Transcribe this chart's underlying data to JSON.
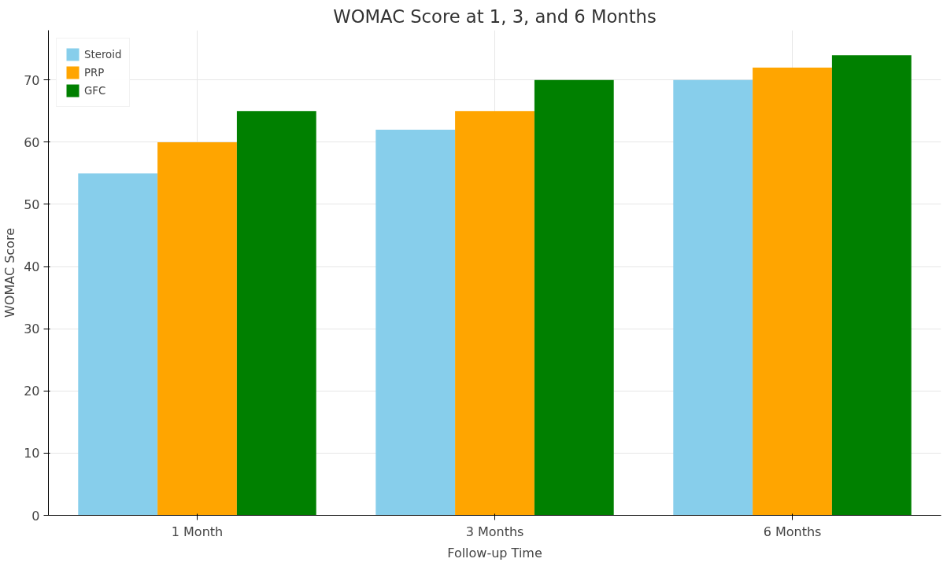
{
  "chart_data": {
    "type": "bar",
    "title": "WOMAC Score at 1, 3, and 6 Months",
    "xlabel": "Follow-up Time",
    "ylabel": "WOMAC Score",
    "categories": [
      "1 Month",
      "3 Months",
      "6 Months"
    ],
    "series": [
      {
        "name": "Steroid",
        "color": "#87ceeb",
        "values": [
          55,
          62,
          70
        ]
      },
      {
        "name": "PRP",
        "color": "#ffa500",
        "values": [
          60,
          65,
          72
        ]
      },
      {
        "name": "GFC",
        "color": "#008000",
        "values": [
          65,
          70,
          74
        ]
      }
    ],
    "ylim": [
      0,
      78
    ],
    "yticks": [
      0,
      10,
      20,
      30,
      40,
      50,
      60,
      70
    ],
    "grid": true,
    "legend": "top left"
  }
}
